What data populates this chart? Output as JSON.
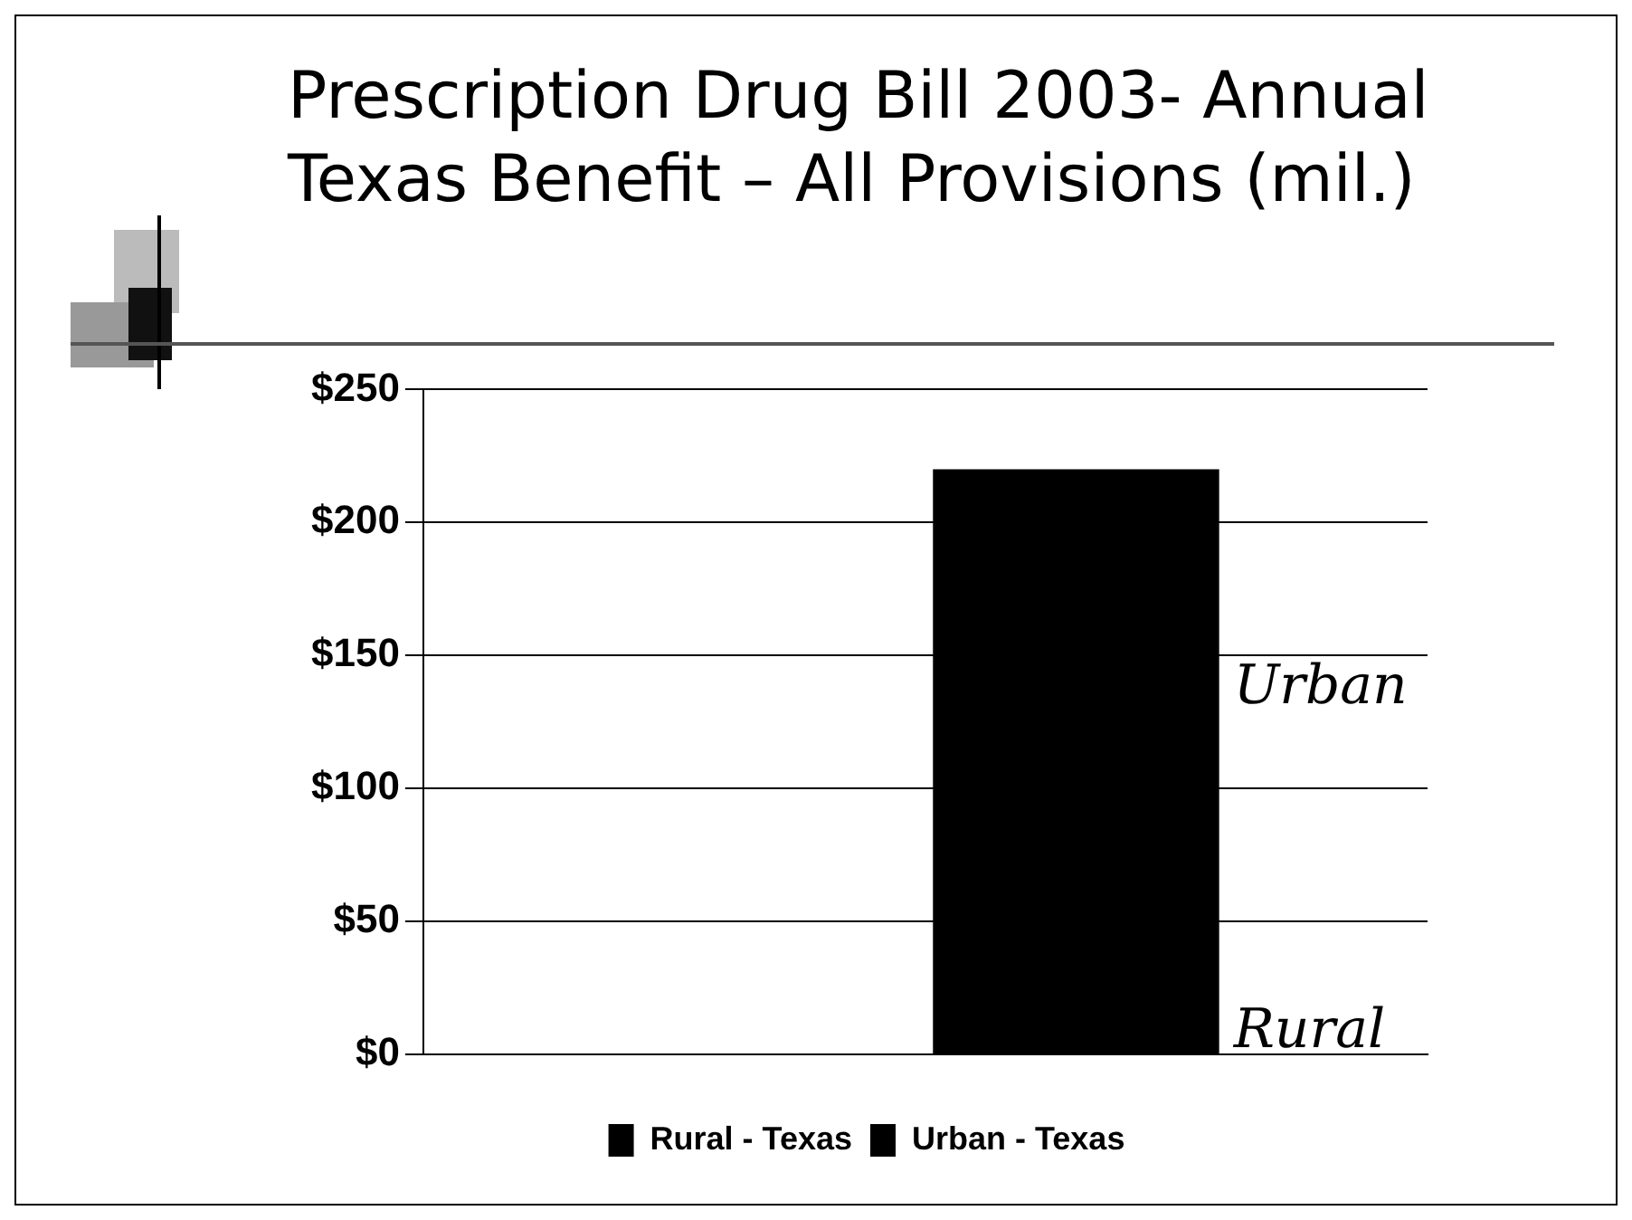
{
  "chart_data": {
    "type": "bar",
    "title": "Prescription Drug Bill 2003- Annual Texas Benefit – All Provisions (mil.)",
    "categories": [
      null
    ],
    "series": [
      {
        "name": "Rural - Texas",
        "color": "#000000",
        "values": [
          0
        ]
      },
      {
        "name": "Urban - Texas",
        "color": "#000000",
        "values": [
          220
        ]
      }
    ],
    "ylim": [
      0,
      250
    ],
    "yticks": [
      {
        "value": 0,
        "label": "$0"
      },
      {
        "value": 50,
        "label": "$50"
      },
      {
        "value": 100,
        "label": "$100"
      },
      {
        "value": 150,
        "label": "$150"
      },
      {
        "value": 200,
        "label": "$200"
      },
      {
        "value": 250,
        "label": "$250"
      }
    ],
    "grid": "y",
    "legend": "bottom",
    "annotations": [
      "Urban",
      "Rural"
    ]
  }
}
